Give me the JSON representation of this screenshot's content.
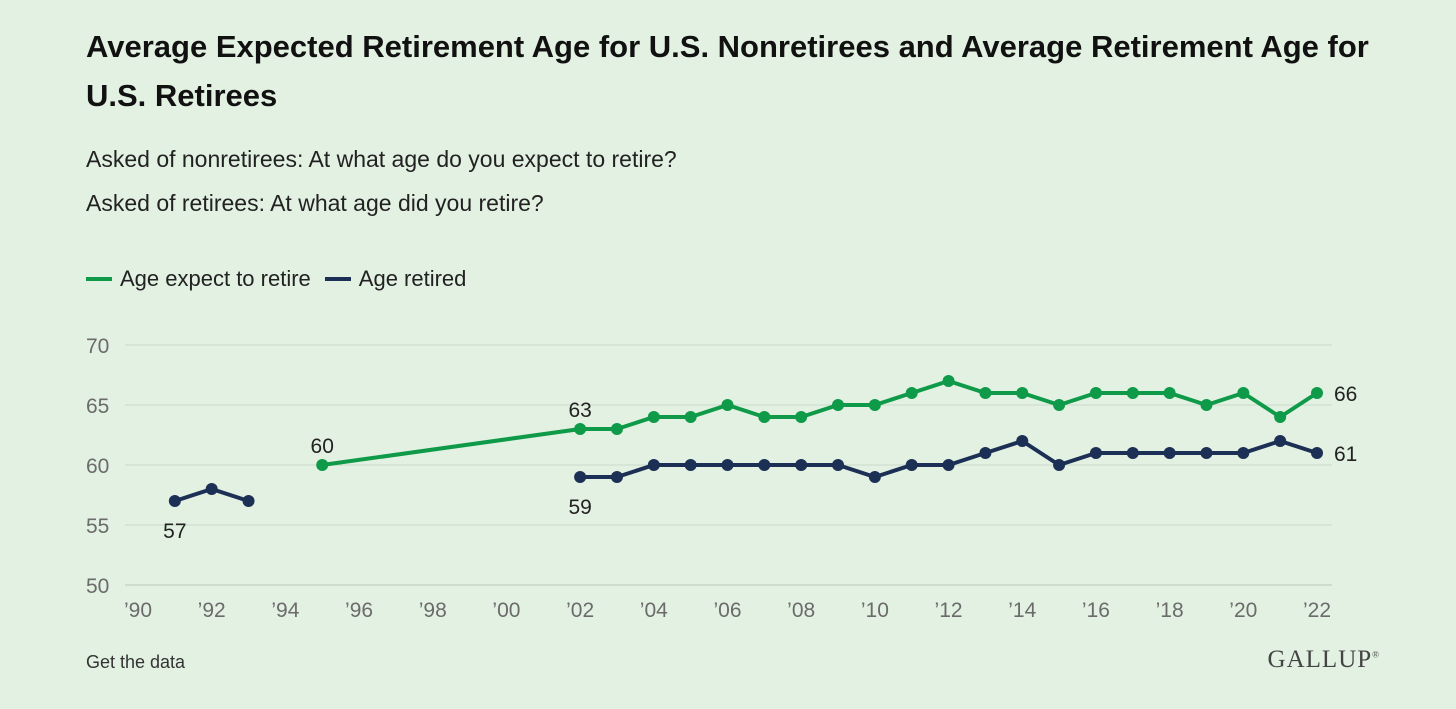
{
  "title": "Average Expected Retirement Age for U.S. Nonretirees and Average Retirement Age for U.S. Retirees",
  "subtitle1": "Asked of nonretirees: At what age do you expect to retire?",
  "subtitle2": "Asked of retirees: At what age did you retire?",
  "legend": [
    {
      "label": "Age expect to retire",
      "color": "#0e9a48"
    },
    {
      "label": "Age retired",
      "color": "#1c2f55"
    }
  ],
  "footer": {
    "link": "Get the data",
    "brand": "GALLUP",
    "brand_mark": "®"
  },
  "chart_data": {
    "type": "line",
    "xlim": [
      1990,
      2022
    ],
    "ylim": [
      50,
      70
    ],
    "yticks": [
      50,
      55,
      60,
      65,
      70
    ],
    "xticks": [
      {
        "value": 1990,
        "label": "’90"
      },
      {
        "value": 1992,
        "label": "’92"
      },
      {
        "value": 1994,
        "label": "’94"
      },
      {
        "value": 1996,
        "label": "’96"
      },
      {
        "value": 1998,
        "label": "’98"
      },
      {
        "value": 2000,
        "label": "’00"
      },
      {
        "value": 2002,
        "label": "’02"
      },
      {
        "value": 2004,
        "label": "’04"
      },
      {
        "value": 2006,
        "label": "’06"
      },
      {
        "value": 2008,
        "label": "’08"
      },
      {
        "value": 2010,
        "label": "’10"
      },
      {
        "value": 2012,
        "label": "’12"
      },
      {
        "value": 2014,
        "label": "’14"
      },
      {
        "value": 2016,
        "label": "’16"
      },
      {
        "value": 2018,
        "label": "’18"
      },
      {
        "value": 2020,
        "label": "’20"
      },
      {
        "value": 2022,
        "label": "’22"
      }
    ],
    "grid": true,
    "series": [
      {
        "name": "Age expect to retire",
        "color": "#0e9a48",
        "segments": [
          [
            [
              1995,
              60
            ],
            [
              2002,
              63
            ],
            [
              2003,
              63
            ],
            [
              2004,
              64
            ],
            [
              2005,
              64
            ],
            [
              2006,
              65
            ],
            [
              2007,
              64
            ],
            [
              2008,
              64
            ],
            [
              2009,
              65
            ],
            [
              2010,
              65
            ],
            [
              2011,
              66
            ],
            [
              2012,
              67
            ],
            [
              2013,
              66
            ],
            [
              2014,
              66
            ],
            [
              2015,
              65
            ],
            [
              2016,
              66
            ],
            [
              2017,
              66
            ],
            [
              2018,
              66
            ],
            [
              2019,
              65
            ],
            [
              2020,
              66
            ],
            [
              2021,
              64
            ],
            [
              2022,
              66
            ]
          ]
        ],
        "annotations": [
          {
            "x": 1995,
            "y": 60,
            "label": "60",
            "position": "above"
          },
          {
            "x": 2002,
            "y": 63,
            "label": "63",
            "position": "above"
          },
          {
            "x": 2022,
            "y": 66,
            "label": "66",
            "position": "right"
          }
        ]
      },
      {
        "name": "Age retired",
        "color": "#1c2f55",
        "segments": [
          [
            [
              1991,
              57
            ],
            [
              1992,
              58
            ],
            [
              1993,
              57
            ]
          ],
          [
            [
              2002,
              59
            ],
            [
              2003,
              59
            ],
            [
              2004,
              60
            ],
            [
              2005,
              60
            ],
            [
              2006,
              60
            ],
            [
              2007,
              60
            ],
            [
              2008,
              60
            ],
            [
              2009,
              60
            ],
            [
              2010,
              59
            ],
            [
              2011,
              60
            ],
            [
              2012,
              60
            ],
            [
              2013,
              61
            ],
            [
              2014,
              62
            ],
            [
              2015,
              60
            ],
            [
              2016,
              61
            ],
            [
              2017,
              61
            ],
            [
              2018,
              61
            ],
            [
              2019,
              61
            ],
            [
              2020,
              61
            ],
            [
              2021,
              62
            ],
            [
              2022,
              61
            ]
          ]
        ],
        "annotations": [
          {
            "x": 1991,
            "y": 57,
            "label": "57",
            "position": "below"
          },
          {
            "x": 2002,
            "y": 59,
            "label": "59",
            "position": "below"
          },
          {
            "x": 2022,
            "y": 61,
            "label": "61",
            "position": "right"
          }
        ]
      }
    ]
  }
}
